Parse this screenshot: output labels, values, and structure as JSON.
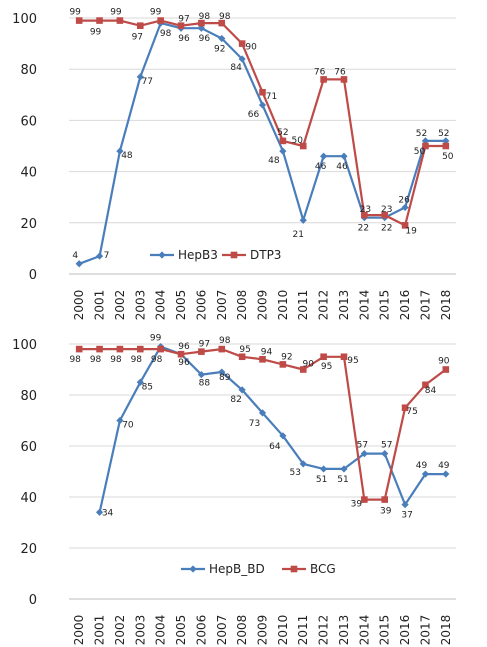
{
  "chart_data": [
    {
      "type": "line",
      "x": [
        "2000",
        "2001",
        "2002",
        "2003",
        "2004",
        "2005",
        "2006",
        "2007",
        "2008",
        "2009",
        "2010",
        "2011",
        "2012",
        "2013",
        "2014",
        "2015",
        "2016",
        "2017",
        "2018"
      ],
      "ylim": [
        0,
        100
      ],
      "yticks": [
        0,
        20,
        40,
        60,
        80,
        100
      ],
      "grid": true,
      "legend": "bottom-center",
      "series": [
        {
          "name": "HepB3",
          "color": "#4a7ebb",
          "marker": "diamond",
          "values": [
            4,
            7,
            48,
            77,
            98,
            96,
            96,
            92,
            84,
            66,
            48,
            21,
            46,
            46,
            22,
            22,
            26,
            52,
            52
          ],
          "labels": [
            "4",
            "7",
            "48",
            "77",
            "98",
            "96",
            "96",
            "92",
            "84",
            "66",
            "48",
            "21",
            "46",
            "46",
            "22",
            "22",
            "26",
            "52",
            "52"
          ]
        },
        {
          "name": "DTP3",
          "color": "#be4b48",
          "marker": "square",
          "values": [
            99,
            99,
            99,
            97,
            99,
            97,
            98,
            98,
            90,
            71,
            52,
            50,
            76,
            76,
            23,
            23,
            19,
            50,
            50
          ],
          "labels": [
            "99",
            "99",
            "99",
            "97",
            "99",
            "97",
            "98",
            "98",
            "90",
            "71",
            "52",
            "50",
            "76",
            "76",
            "23",
            "23",
            "19",
            "50",
            "50"
          ]
        }
      ]
    },
    {
      "type": "line",
      "x": [
        "2000",
        "2001",
        "2002",
        "2003",
        "2004",
        "2005",
        "2006",
        "2007",
        "2008",
        "2009",
        "2010",
        "2011",
        "2012",
        "2013",
        "2014",
        "2015",
        "2016",
        "2017",
        "2018"
      ],
      "ylim": [
        0,
        100
      ],
      "yticks": [
        0,
        20,
        40,
        60,
        80,
        100
      ],
      "grid": true,
      "legend": "bottom-center",
      "series": [
        {
          "name": "HepB_BD",
          "color": "#4a7ebb",
          "marker": "diamond",
          "values": [
            null,
            34,
            70,
            85,
            99,
            96,
            88,
            89,
            82,
            73,
            64,
            53,
            51,
            51,
            57,
            57,
            37,
            49,
            49
          ],
          "labels": [
            "",
            "34",
            "70",
            "85",
            "99",
            "96",
            "88",
            "89",
            "82",
            "73",
            "64",
            "53",
            "51",
            "51",
            "57",
            "57",
            "37",
            "49",
            "49"
          ]
        },
        {
          "name": "BCG",
          "color": "#be4b48",
          "marker": "square",
          "values": [
            98,
            98,
            98,
            98,
            98,
            96,
            97,
            98,
            95,
            94,
            92,
            90,
            95,
            95,
            39,
            39,
            75,
            84,
            90
          ],
          "labels": [
            "98",
            "98",
            "98",
            "98",
            "98",
            "96",
            "97",
            "98",
            "95",
            "94",
            "92",
            "90",
            "95",
            "95",
            "39",
            "39",
            "75",
            "84",
            "90"
          ]
        }
      ]
    }
  ]
}
